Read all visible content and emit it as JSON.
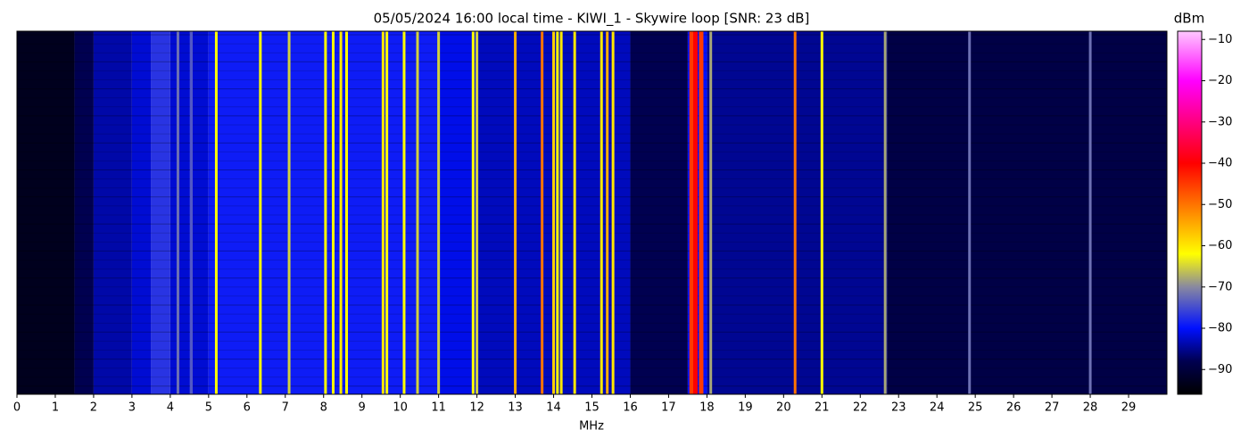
{
  "chart_data": {
    "type": "waterfall",
    "title": "05/05/2024 16:00 local time - KIWI_1 - Skywire loop [SNR: 23 dB]",
    "xlabel": "MHz",
    "colorbar_label": "dBm",
    "xlim": [
      0,
      30
    ],
    "xticks": [
      0,
      1,
      2,
      3,
      4,
      5,
      6,
      7,
      8,
      9,
      10,
      11,
      12,
      13,
      14,
      15,
      16,
      17,
      18,
      19,
      20,
      21,
      22,
      23,
      24,
      25,
      26,
      27,
      28,
      29
    ],
    "clim": [
      -96,
      -8
    ],
    "cticks": [
      {
        "value": -90,
        "label": "−90"
      },
      {
        "value": -80,
        "label": "−80"
      },
      {
        "value": -70,
        "label": "−70"
      },
      {
        "value": -60,
        "label": "−60"
      },
      {
        "value": -50,
        "label": "−50"
      },
      {
        "value": -40,
        "label": "−40"
      },
      {
        "value": -30,
        "label": "−30"
      },
      {
        "value": -20,
        "label": "−20"
      },
      {
        "value": -10,
        "label": "−10"
      }
    ],
    "colormap": [
      {
        "value": -96,
        "color": "#000000"
      },
      {
        "value": -88,
        "color": "#000050"
      },
      {
        "value": -80,
        "color": "#0010ff"
      },
      {
        "value": -70,
        "color": "#8888a0"
      },
      {
        "value": -62,
        "color": "#ffff00"
      },
      {
        "value": -40,
        "color": "#ff0000"
      },
      {
        "value": -20,
        "color": "#ff00ff"
      },
      {
        "value": -8,
        "color": "#ffc8ff"
      }
    ],
    "floor": {
      "bins": [
        0,
        1.5,
        2,
        3,
        3.5,
        4,
        4.5,
        5,
        11,
        12,
        16,
        17.5,
        18,
        22.7,
        30
      ],
      "values": [
        -93,
        -88,
        -84,
        -82,
        -77,
        -82,
        -82,
        -79,
        -81,
        -83,
        -88,
        -80,
        -85,
        -89
      ]
    },
    "signals": {
      "x": [
        4.2,
        4.55,
        5.2,
        6.35,
        7.1,
        8.05,
        8.25,
        8.45,
        8.6,
        9.55,
        9.65,
        10.1,
        10.45,
        11.0,
        11.9,
        12.0,
        13.0,
        13.7,
        14.0,
        14.1,
        14.2,
        14.55,
        15.25,
        15.4,
        15.55,
        17.6,
        17.7,
        17.85,
        18.1,
        20.3,
        21.0,
        22.65,
        24.85,
        28.0
      ],
      "values": [
        -72,
        -74,
        -62,
        -62,
        -65,
        -62,
        -62,
        -60,
        -62,
        -60,
        -62,
        -62,
        -65,
        -65,
        -62,
        -65,
        -55,
        -50,
        -58,
        -62,
        -60,
        -60,
        -60,
        -55,
        -60,
        -45,
        -40,
        -45,
        -68,
        -50,
        -62,
        -68,
        -72,
        -72
      ]
    }
  }
}
